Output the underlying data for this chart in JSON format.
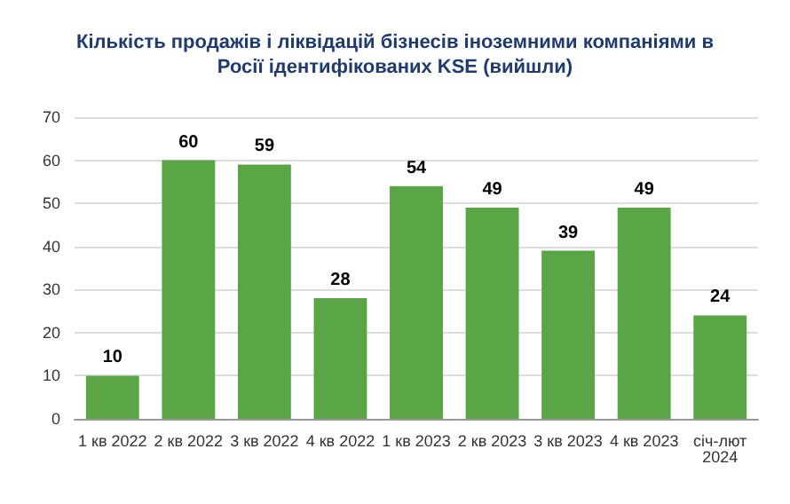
{
  "chart_data": {
    "type": "bar",
    "title": "Кількість продажів і ліквідацій бізнесів іноземними компаніями в\nРосії ідентифікованих KSE (вийшли)",
    "categories": [
      "1 кв 2022",
      "2 кв 2022",
      "3 кв 2022",
      "4 кв 2022",
      "1 кв 2023",
      "2 кв 2023",
      "3 кв 2023",
      "4 кв 2023",
      "січ-лют\n2024"
    ],
    "values": [
      10,
      60,
      59,
      28,
      54,
      49,
      39,
      49,
      24
    ],
    "color": "#5aa646",
    "ylim": [
      0,
      70
    ],
    "yticks": [
      0,
      10,
      20,
      30,
      40,
      50,
      60,
      70
    ],
    "grid": "y",
    "data_labels": true
  }
}
